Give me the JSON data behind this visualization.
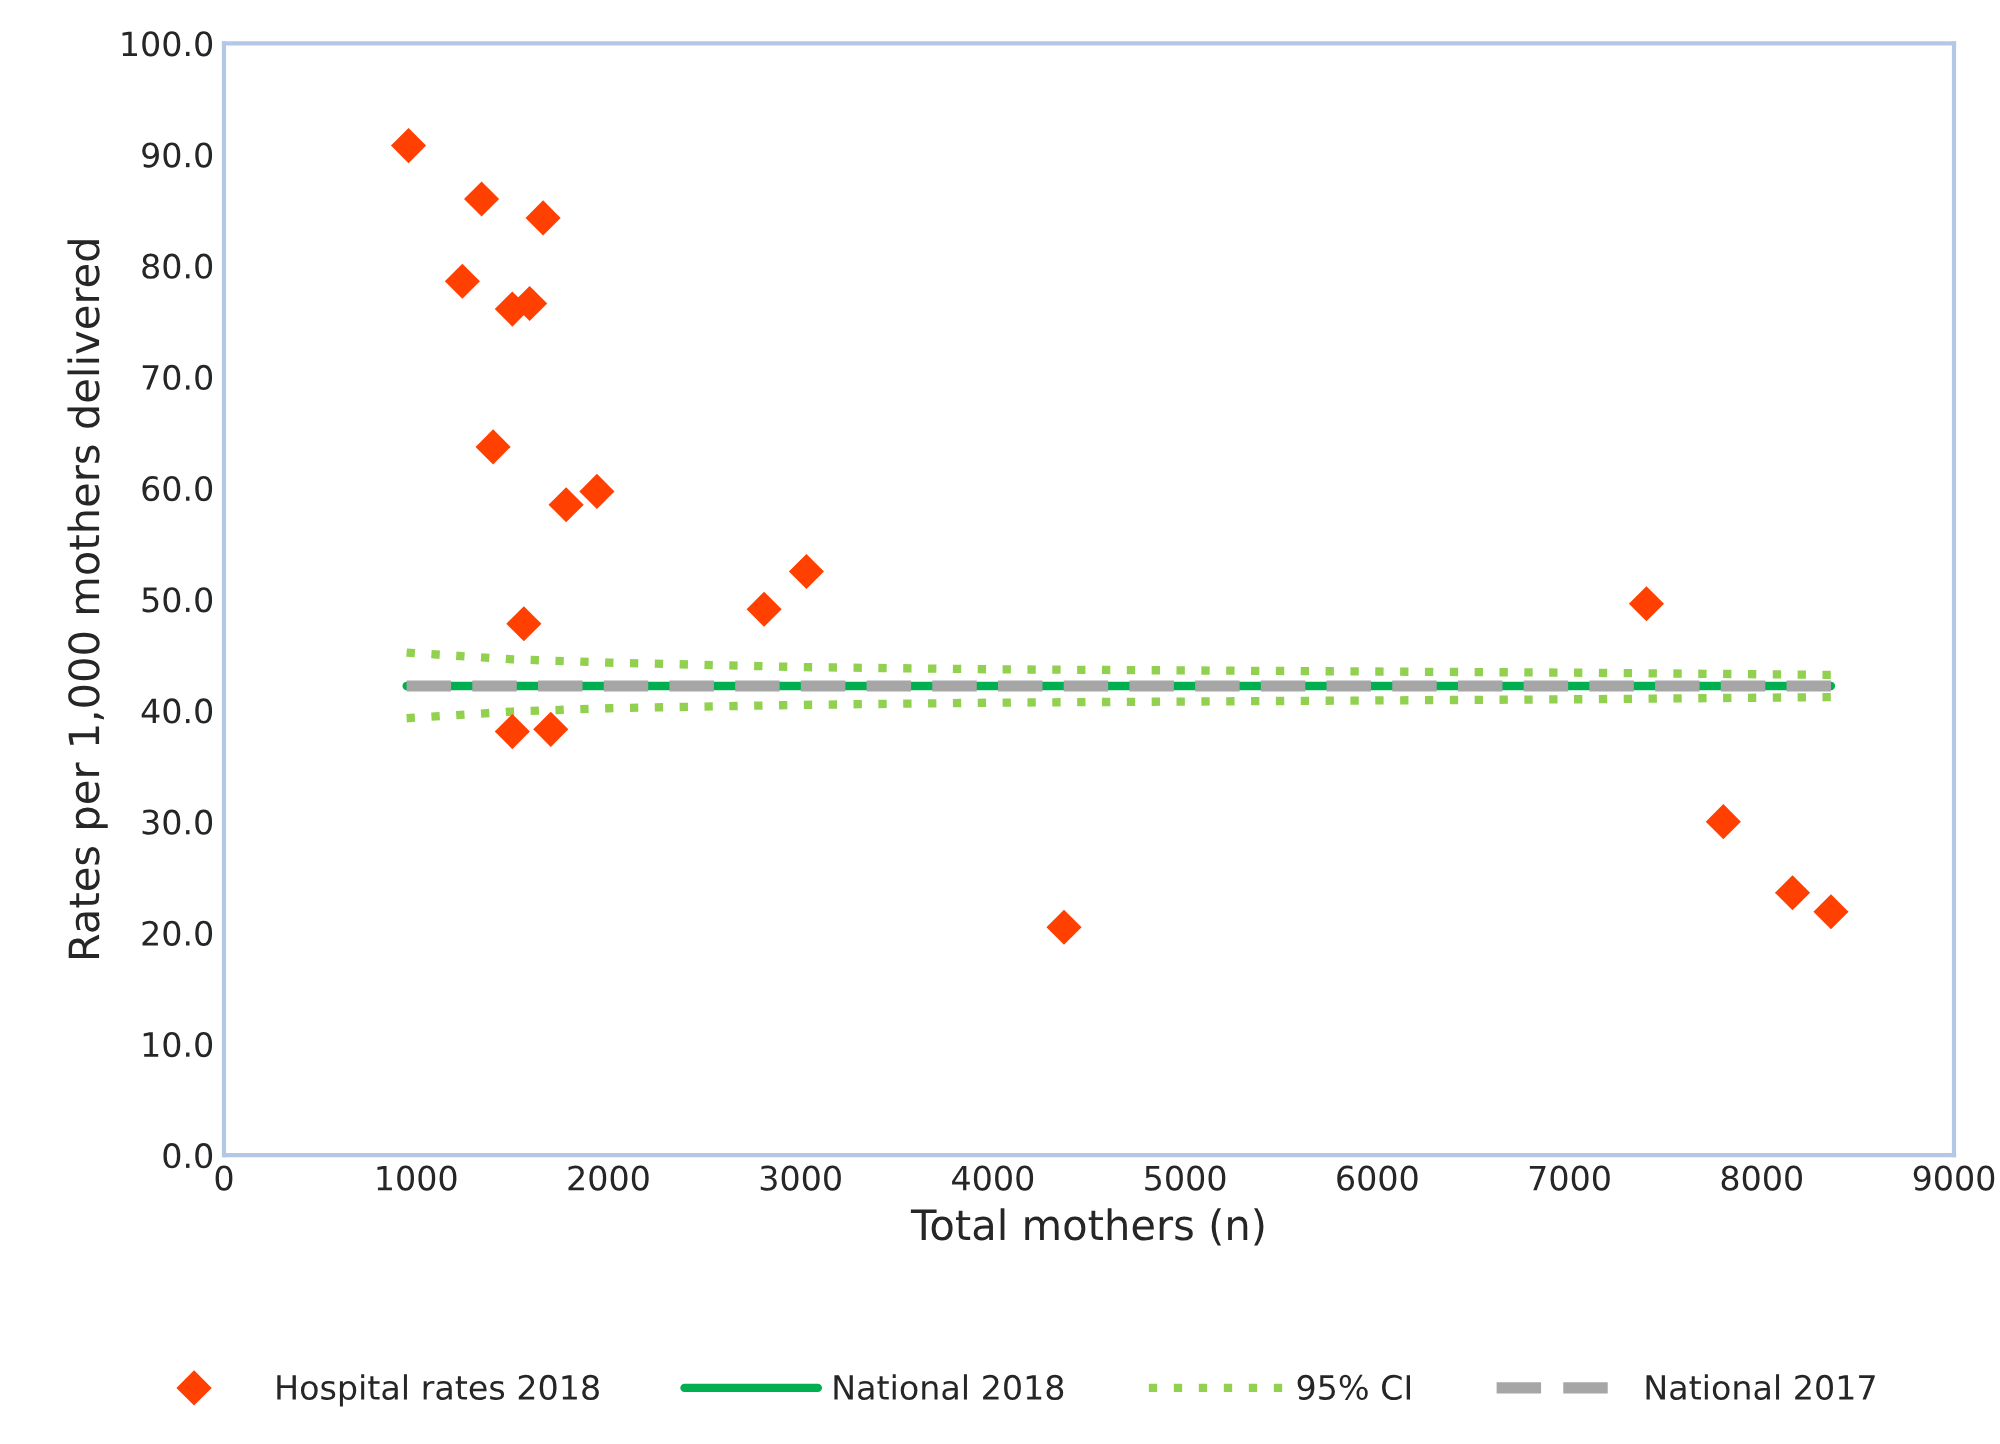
{
  "chart_data": {
    "type": "scatter",
    "xlabel": "Total mothers (n)",
    "ylabel": "Rates per 1,000 mothers delivered",
    "xlim": [
      0,
      9000
    ],
    "xticks": [
      0,
      1000,
      2000,
      3000,
      4000,
      5000,
      6000,
      7000,
      8000,
      9000
    ],
    "ylim": [
      0,
      100
    ],
    "yticks": [
      {
        "value": 0,
        "label": "0.0"
      },
      {
        "value": 10,
        "label": "10.0"
      },
      {
        "value": 20,
        "label": "20.0"
      },
      {
        "value": 30,
        "label": "30.0"
      },
      {
        "value": 40,
        "label": "40.0"
      },
      {
        "value": 50,
        "label": "50.0"
      },
      {
        "value": 60,
        "label": "60.0"
      },
      {
        "value": 70,
        "label": "70.0"
      },
      {
        "value": 80,
        "label": "80.0"
      },
      {
        "value": 90,
        "label": "90.0"
      },
      {
        "value": 100,
        "label": "100.0"
      }
    ],
    "grid": false,
    "legend": "bottom",
    "series": [
      {
        "name": "Hospital rates 2018",
        "marker": "diamond",
        "color": "#ff4000",
        "x": [
          960,
          1340,
          1660,
          1240,
          1590,
          1500,
          1400,
          1940,
          1780,
          1560,
          1500,
          1700,
          2810,
          3030,
          4370,
          7400,
          7800,
          8160,
          8360
        ],
        "values": [
          90.8,
          86.0,
          84.3,
          78.6,
          76.6,
          76.1,
          63.7,
          59.7,
          58.5,
          47.8,
          38.1,
          38.3,
          49.1,
          52.5,
          20.5,
          49.6,
          30.0,
          23.6,
          21.9
        ]
      },
      {
        "name": "National 2018",
        "type": "line",
        "marker": "none",
        "line_style": "solid",
        "color": "#00b050",
        "x": [
          950,
          8360
        ],
        "values": [
          42.2,
          42.2
        ]
      },
      {
        "name": "95% CI",
        "type": "line",
        "marker": "none",
        "line_style": "dotted",
        "color": "#92d050",
        "x": [
          950,
          1500,
          2000,
          3000,
          4000,
          5000,
          6000,
          7000,
          8360
        ],
        "values": [
          45.2,
          44.6,
          44.3,
          43.9,
          43.7,
          43.6,
          43.5,
          43.4,
          43.2
        ]
      },
      {
        "type": "line",
        "marker": "none",
        "line_style": "dotted",
        "color": "#92d050",
        "x": [
          950,
          1500,
          2000,
          3000,
          4000,
          5000,
          6000,
          7000,
          8360
        ],
        "values": [
          39.3,
          39.9,
          40.2,
          40.5,
          40.7,
          40.8,
          40.9,
          41.0,
          41.2
        ]
      },
      {
        "name": "National 2017",
        "type": "line",
        "marker": "none",
        "line_style": "dashed",
        "color": "#a6a6a6",
        "x": [
          950,
          8360
        ],
        "values": [
          42.2,
          42.2
        ]
      }
    ]
  }
}
